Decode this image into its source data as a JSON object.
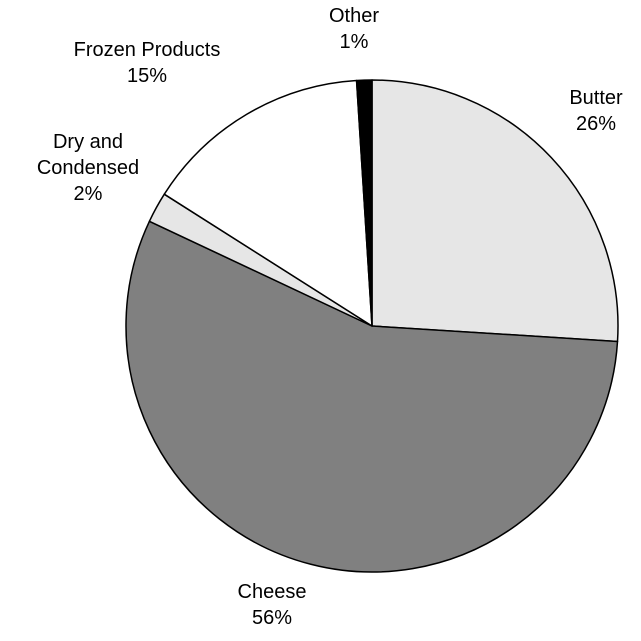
{
  "chart_data": {
    "type": "pie",
    "categories": [
      "Butter",
      "Cheese",
      "Dry and Condensed",
      "Frozen Products",
      "Other"
    ],
    "values": [
      26,
      56,
      2,
      15,
      1
    ],
    "value_labels": [
      "26%",
      "56%",
      "2%",
      "15%",
      "1%"
    ],
    "label_lines": [
      [
        "Butter"
      ],
      [
        "Cheese"
      ],
      [
        "Dry and",
        "Condensed"
      ],
      [
        "Frozen Products"
      ],
      [
        "Other"
      ]
    ],
    "colors": [
      "#e6e6e6",
      "#808080",
      "#e6e6e6",
      "#ffffff",
      "#000000"
    ],
    "start_at": "12 o'clock",
    "direction": "clockwise",
    "legend": "none",
    "label_placement": "outside"
  }
}
